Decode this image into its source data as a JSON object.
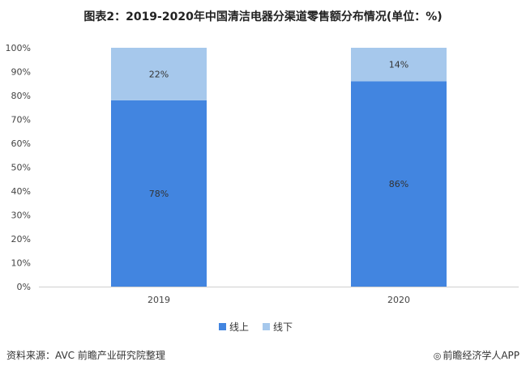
{
  "title": "图表2：2019-2020年中国清洁电器分渠道零售额分布情况(单位：%)",
  "source": "资料来源：AVC 前瞻产业研究院整理",
  "brand": "前瞻经济学人APP",
  "brand_icon": "globe-icon",
  "chart_data": {
    "type": "bar",
    "stacked": true,
    "categories": [
      "2019",
      "2020"
    ],
    "series": [
      {
        "name": "线上",
        "values": [
          78,
          86
        ],
        "labels": [
          "78%",
          "86%"
        ],
        "color": "#4285e0"
      },
      {
        "name": "线下",
        "values": [
          22,
          14
        ],
        "labels": [
          "22%",
          "14%"
        ],
        "color": "#a6c8ec"
      }
    ],
    "ylim": [
      0,
      100
    ],
    "yticks": [
      "0%",
      "10%",
      "20%",
      "30%",
      "40%",
      "50%",
      "60%",
      "70%",
      "80%",
      "90%",
      "100%"
    ],
    "grid": false,
    "legend": "bottom",
    "xlabel": "",
    "ylabel": ""
  }
}
